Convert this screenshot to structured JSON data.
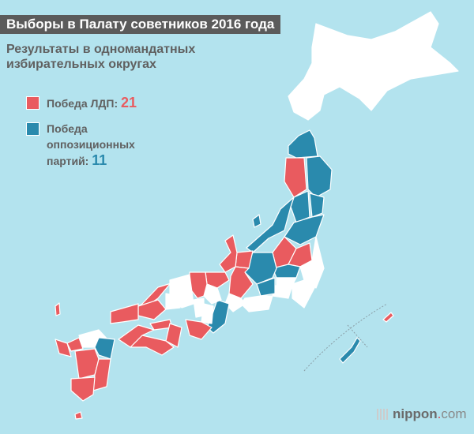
{
  "header": {
    "title": "Выборы в Палату советников 2016 года",
    "subtitle": "Результаты в одномандатных избирательных округах"
  },
  "legend": {
    "items": [
      {
        "label": "Победа ЛДП:",
        "count": "21",
        "color": "#e95b5f"
      },
      {
        "label": "Победа оппозиционных партий:",
        "count": "11",
        "color": "#2a8aad"
      }
    ]
  },
  "colors": {
    "background": "#b3e3ee",
    "ldp": "#e95b5f",
    "opposition": "#2a8aad",
    "other": "#ffffff"
  },
  "logo": {
    "name": "nippon",
    "dot": ".",
    "suffix": "com"
  }
}
